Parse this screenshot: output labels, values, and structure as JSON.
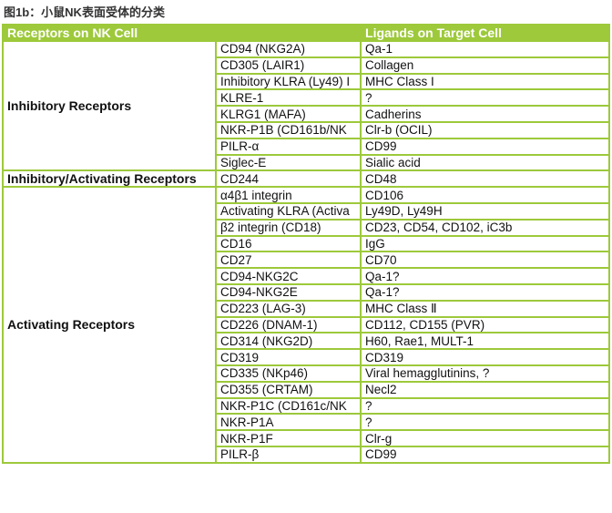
{
  "title": "图1b：小鼠NK表面受体的分类",
  "headers": {
    "receptors": "Receptors on NK Cell",
    "ligands": "Ligands on Target Cell"
  },
  "colors": {
    "border": "#9dc93b",
    "header_bg": "#9dc93b"
  },
  "groups": [
    {
      "name": "Inhibitory Receptors",
      "rows": [
        [
          "CD94 (NKG2A)",
          "Qa-1"
        ],
        [
          "CD305 (LAIR1)",
          "Collagen"
        ],
        [
          "Inhibitory KLRA (Ly49) I",
          "MHC Class I"
        ],
        [
          "KLRE-1",
          "?"
        ],
        [
          "KLRG1 (MAFA)",
          "Cadherins"
        ],
        [
          "NKR-P1B (CD161b/NK",
          "Clr-b (OCIL)"
        ],
        [
          "PILR-α",
          "CD99"
        ],
        [
          "Siglec-E",
          "Sialic acid"
        ]
      ]
    },
    {
      "name": "Inhibitory/Activating Receptors",
      "rows": [
        [
          "CD244",
          "CD48"
        ]
      ]
    },
    {
      "name": "Activating Receptors",
      "rows": [
        [
          "α4β1 integrin",
          "CD106"
        ],
        [
          "Activating KLRA (Activa",
          "Ly49D, Ly49H"
        ],
        [
          "β2 integrin (CD18)",
          "CD23, CD54, CD102, iC3b"
        ],
        [
          "CD16",
          "IgG"
        ],
        [
          "CD27",
          "CD70"
        ],
        [
          "CD94-NKG2C",
          "Qa-1?"
        ],
        [
          "CD94-NKG2E",
          "Qa-1?"
        ],
        [
          "CD223 (LAG-3)",
          "MHC Class Ⅱ"
        ],
        [
          "CD226 (DNAM-1)",
          "CD112, CD155 (PVR)"
        ],
        [
          "CD314 (NKG2D)",
          "H60, Rae1, MULT-1"
        ],
        [
          "CD319",
          "CD319"
        ],
        [
          "CD335 (NKp46)",
          "Viral hemagglutinins, ?"
        ],
        [
          "CD355 (CRTAM)",
          "Necl2"
        ],
        [
          "NKR-P1C (CD161c/NK",
          "?"
        ],
        [
          "NKR-P1A",
          "?"
        ],
        [
          "NKR-P1F",
          "Clr-g"
        ],
        [
          "PILR-β",
          "CD99"
        ]
      ]
    }
  ]
}
